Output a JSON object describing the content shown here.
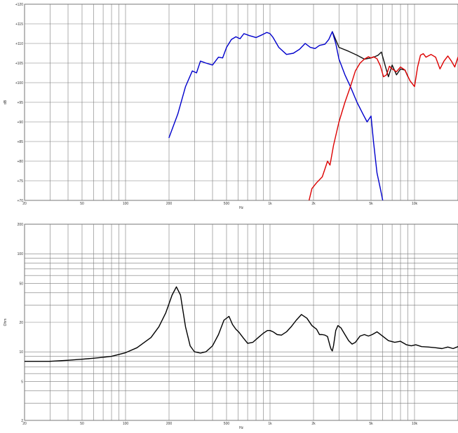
{
  "chart_data": [
    {
      "type": "line",
      "title": "",
      "xlabel": "Hz",
      "ylabel": "dB",
      "x_scale": "log",
      "xlim": [
        20,
        20000
      ],
      "ylim": [
        70,
        120
      ],
      "x_ticks": [
        {
          "value": 20,
          "label": "20"
        },
        {
          "value": 50,
          "label": "50"
        },
        {
          "value": 100,
          "label": "100"
        },
        {
          "value": 200,
          "label": "200"
        },
        {
          "value": 500,
          "label": "500"
        },
        {
          "value": 1000,
          "label": "1k"
        },
        {
          "value": 2000,
          "label": "2k"
        },
        {
          "value": 5000,
          "label": "5k"
        },
        {
          "value": 10000,
          "label": "10k"
        }
      ],
      "y_ticks": [
        {
          "value": 70,
          "label": "+70"
        },
        {
          "value": 75,
          "label": "+75"
        },
        {
          "value": 80,
          "label": "+80"
        },
        {
          "value": 85,
          "label": "+85"
        },
        {
          "value": 90,
          "label": "+90"
        },
        {
          "value": 95,
          "label": "+95"
        },
        {
          "value": 100,
          "label": "+100"
        },
        {
          "value": 105,
          "label": "+105"
        },
        {
          "value": 110,
          "label": "+110"
        },
        {
          "value": 115,
          "label": "+115"
        },
        {
          "value": 120,
          "label": "+120"
        }
      ],
      "grid": true,
      "series": [
        {
          "color": "#111111",
          "x": [
            2700,
            3000,
            3500,
            4000,
            4500,
            5000,
            5300,
            5600,
            5900,
            6300,
            6600,
            7000,
            7500,
            8000,
            8600,
            9000
          ],
          "y": [
            113,
            109,
            108,
            107,
            106,
            106.3,
            106.6,
            107,
            107.8,
            104,
            101.5,
            104.5,
            102,
            103.5,
            103.2,
            101.5
          ]
        },
        {
          "color": "#0000cc",
          "x": [
            200,
            230,
            260,
            290,
            310,
            330,
            360,
            400,
            440,
            470,
            500,
            540,
            580,
            620,
            660,
            720,
            800,
            880,
            950,
            1000,
            1050,
            1150,
            1300,
            1450,
            1600,
            1750,
            1900,
            2050,
            2200,
            2400,
            2550,
            2700,
            2850,
            3000,
            3300,
            3600,
            4000,
            4400,
            4700,
            5000,
            5200,
            5500,
            5800,
            6100
          ],
          "y": [
            86,
            92,
            99,
            103,
            102.5,
            105.5,
            105,
            104.5,
            106.5,
            106.3,
            109,
            111,
            111.7,
            111.2,
            112.5,
            112,
            111.5,
            112.2,
            112.8,
            112.5,
            111.5,
            109,
            107.2,
            107.5,
            108.5,
            110,
            109,
            108.7,
            109.5,
            109.8,
            111,
            113,
            110,
            106,
            102,
            99,
            95,
            92,
            90,
            91.5,
            85,
            77,
            73,
            69
          ]
        },
        {
          "color": "#dd0000",
          "x": [
            1850,
            1950,
            2100,
            2300,
            2500,
            2600,
            2750,
            3000,
            3300,
            3600,
            3900,
            4200,
            4500,
            4800,
            5000,
            5200,
            5500,
            5800,
            6100,
            6400,
            6700,
            7000,
            7500,
            8000,
            8600,
            9300,
            10000,
            10500,
            11000,
            11500,
            12000,
            13000,
            14000,
            15000,
            16000,
            17000,
            18000,
            19000,
            20000
          ],
          "y": [
            69.5,
            73,
            74.5,
            76,
            80,
            79,
            84,
            90,
            95,
            99,
            103,
            105,
            106,
            106.6,
            106.3,
            106.6,
            106.1,
            104.3,
            101.5,
            102,
            104.2,
            103.5,
            102.8,
            104,
            103.2,
            100.5,
            99,
            104,
            107,
            107.4,
            106.5,
            107.2,
            106.5,
            103.5,
            105.5,
            106.8,
            105.5,
            104,
            106.5
          ]
        }
      ]
    },
    {
      "type": "line",
      "title": "",
      "xlabel": "Hz",
      "ylabel": "Ohm",
      "x_scale": "log",
      "y_scale": "log",
      "xlim": [
        20,
        20000
      ],
      "ylim": [
        2,
        200
      ],
      "x_ticks": [
        {
          "value": 20,
          "label": "20"
        },
        {
          "value": 50,
          "label": "50"
        },
        {
          "value": 100,
          "label": "100"
        },
        {
          "value": 200,
          "label": "200"
        },
        {
          "value": 500,
          "label": "500"
        },
        {
          "value": 1000,
          "label": "1k"
        },
        {
          "value": 2000,
          "label": "2k"
        },
        {
          "value": 5000,
          "label": "5k"
        },
        {
          "value": 10000,
          "label": "10k"
        }
      ],
      "y_ticks": [
        {
          "value": 2,
          "label": "2"
        },
        {
          "value": 5,
          "label": "5"
        },
        {
          "value": 10,
          "label": "10"
        },
        {
          "value": 20,
          "label": "20"
        },
        {
          "value": 50,
          "label": "50"
        },
        {
          "value": 100,
          "label": "100"
        },
        {
          "value": 200,
          "label": "200"
        }
      ],
      "grid": true,
      "series": [
        {
          "color": "#000000",
          "x": [
            20,
            30,
            40,
            50,
            60,
            70,
            80,
            100,
            120,
            150,
            170,
            190,
            210,
            225,
            240,
            260,
            280,
            300,
            330,
            360,
            400,
            440,
            480,
            520,
            550,
            580,
            610,
            650,
            700,
            760,
            830,
            900,
            960,
            1000,
            1050,
            1120,
            1200,
            1300,
            1400,
            1520,
            1650,
            1800,
            1950,
            2100,
            2200,
            2300,
            2400,
            2500,
            2600,
            2650,
            2700,
            2750,
            2850,
            2950,
            3100,
            3300,
            3500,
            3700,
            3900,
            4200,
            4500,
            4800,
            5100,
            5500,
            6000,
            6600,
            7300,
            8000,
            8800,
            9500,
            10200,
            11200,
            12500,
            14000,
            15500,
            17000,
            18500,
            20000
          ],
          "y": [
            8,
            8,
            8.2,
            8.4,
            8.6,
            8.8,
            9,
            9.8,
            11,
            14,
            18,
            25,
            38,
            46,
            38,
            18,
            11.5,
            10,
            9.7,
            10,
            11.5,
            15,
            21,
            23,
            19,
            17,
            15.8,
            14,
            12.2,
            12.5,
            14,
            15.5,
            16.5,
            16.5,
            16,
            15,
            14.8,
            16,
            18,
            21,
            24,
            22,
            18.5,
            17,
            15,
            15,
            14.8,
            14.3,
            11.5,
            10.6,
            10.2,
            11.5,
            16.5,
            18.5,
            17.5,
            15,
            13,
            12,
            12.5,
            14.5,
            15,
            14.5,
            15,
            16,
            14.5,
            13,
            12.5,
            12.8,
            11.8,
            11.5,
            11.8,
            11.3,
            11.2,
            11,
            10.8,
            11.2,
            10.8,
            11.3
          ]
        }
      ]
    }
  ]
}
